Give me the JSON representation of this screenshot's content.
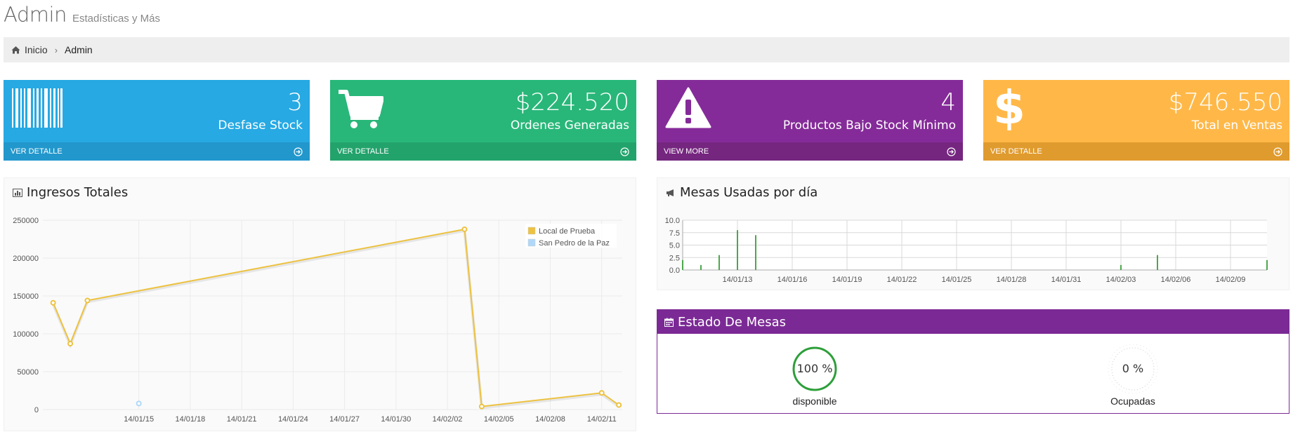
{
  "header": {
    "title": "Admin",
    "subtitle": "Estadísticas y Más"
  },
  "breadcrumb": {
    "home": "Inicio",
    "current": "Admin"
  },
  "stats": [
    {
      "value": "3",
      "label": "Desfase Stock",
      "link": "VER DETALLE",
      "color": "#27a9e3",
      "footer_color": "#2297cc",
      "icon": "barcode-icon"
    },
    {
      "value": "$224.520",
      "label": "Ordenes Generadas",
      "link": "VER DETALLE",
      "color": "#28b779",
      "footer_color": "#23a36c",
      "icon": "shopping-cart-icon"
    },
    {
      "value": "4",
      "label": "Productos Bajo Stock Mínimo",
      "link": "VIEW MORE",
      "color": "#852b99",
      "footer_color": "#75267f",
      "icon": "warning-icon"
    },
    {
      "value": "$746.550",
      "label": "Total en Ventas",
      "link": "VER DETALLE",
      "color": "#ffb848",
      "footer_color": "#e09b2e",
      "icon": "dollar-icon"
    }
  ],
  "ingresos": {
    "title": "Ingresos Totales",
    "icon": "bar-chart-icon"
  },
  "mesas": {
    "title": "Mesas Usadas por día",
    "icon": "megaphone-icon"
  },
  "estado": {
    "title": "Estado De Mesas",
    "icon": "calendar-icon",
    "gauges": [
      {
        "value": "100 %",
        "percent": 100,
        "label": "disponible",
        "color": "#2d9f3a"
      },
      {
        "value": "0 %",
        "percent": 0,
        "label": "Ocupadas",
        "color": "#cccccc"
      }
    ]
  },
  "chart_data": [
    {
      "type": "line",
      "title": "Ingresos Totales",
      "ylim": [
        0,
        250000
      ],
      "y_ticks": [
        "250000",
        "200000",
        "150000",
        "100000",
        "50000",
        "0"
      ],
      "x_tick_labels": [
        "14/01/15",
        "14/01/18",
        "14/01/21",
        "14/01/24",
        "14/01/27",
        "14/01/30",
        "14/02/02",
        "14/02/05",
        "14/02/08",
        "14/02/11"
      ],
      "grid": true,
      "legend": "top-right",
      "series": [
        {
          "name": "Local de Prueba",
          "color": "#edc240",
          "points": [
            {
              "x": "2014-01-10",
              "y": 141000
            },
            {
              "x": "2014-01-11",
              "y": 87000
            },
            {
              "x": "2014-01-12",
              "y": 144000
            },
            {
              "x": "2014-02-03",
              "y": 238000
            },
            {
              "x": "2014-02-04",
              "y": 4000
            },
            {
              "x": "2014-02-11",
              "y": 22000
            },
            {
              "x": "2014-02-12",
              "y": 6000
            }
          ]
        },
        {
          "name": "San Pedro de la Paz",
          "color": "#afd8f8",
          "points": [
            {
              "x": "2014-01-15",
              "y": 8000
            }
          ]
        }
      ]
    },
    {
      "type": "bar",
      "title": "Mesas Usadas por día",
      "ylim": [
        0,
        10
      ],
      "y_ticks": [
        "10.0",
        "7.5",
        "5.0",
        "2.5",
        "0.0"
      ],
      "x_tick_labels": [
        "14/01/13",
        "14/01/16",
        "14/01/19",
        "14/01/22",
        "14/01/25",
        "14/01/28",
        "14/01/31",
        "14/02/03",
        "14/02/06",
        "14/02/09"
      ],
      "grid": true,
      "color": "#4da74d",
      "bars": [
        {
          "x": "2014-01-10",
          "y": 2
        },
        {
          "x": "2014-01-11",
          "y": 1
        },
        {
          "x": "2014-01-12",
          "y": 3
        },
        {
          "x": "2014-01-13",
          "y": 8
        },
        {
          "x": "2014-01-14",
          "y": 7
        },
        {
          "x": "2014-02-03",
          "y": 1
        },
        {
          "x": "2014-02-05",
          "y": 3
        },
        {
          "x": "2014-02-11",
          "y": 2
        }
      ]
    }
  ]
}
